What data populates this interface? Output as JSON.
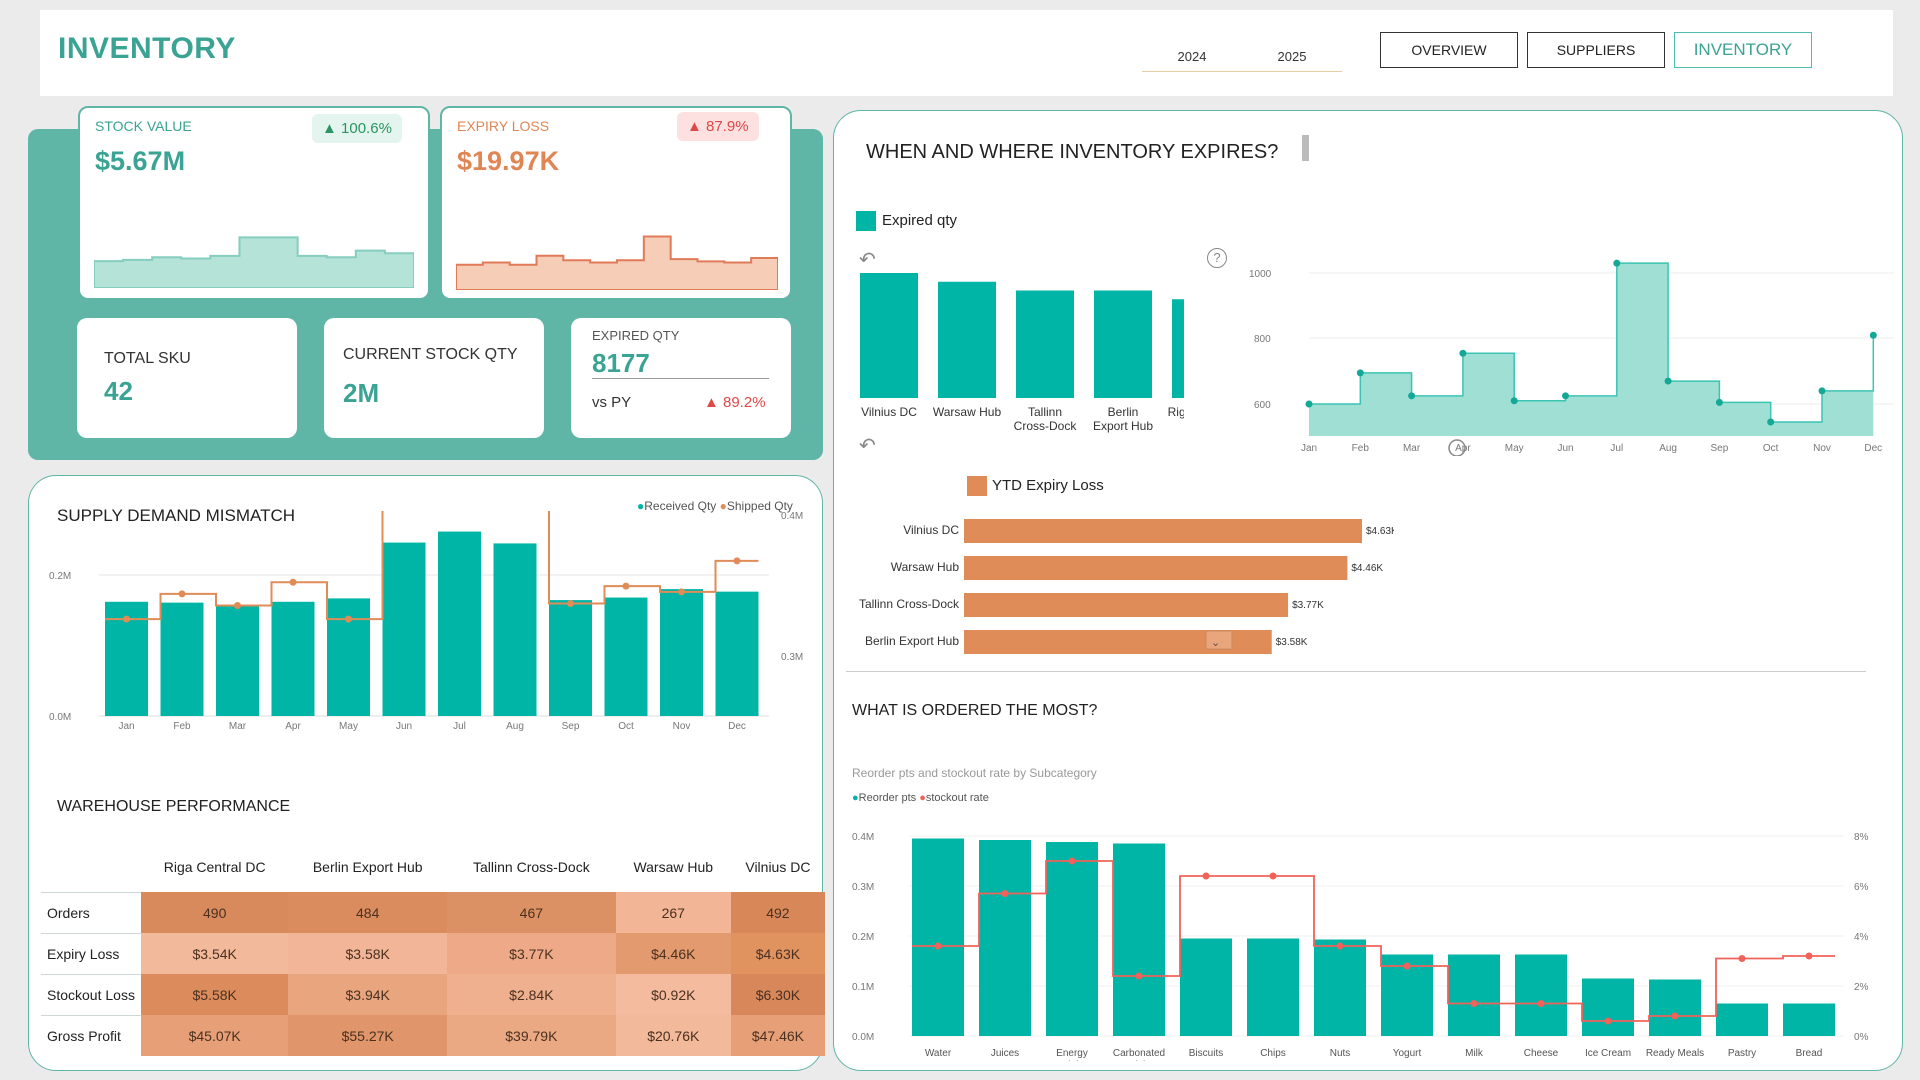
{
  "header": {
    "title": "INVENTORY",
    "years": [
      "2024",
      "2025"
    ],
    "nav": [
      "OVERVIEW",
      "SUPPLIERS",
      "INVENTORY"
    ],
    "active_nav": "INVENTORY"
  },
  "kpis": {
    "stock_value": {
      "label": "STOCK VALUE",
      "value": "$5.67M",
      "change": "100.6%",
      "trend": [
        0.32,
        0.33,
        0.35,
        0.34,
        0.36,
        0.5,
        0.5,
        0.36,
        0.35,
        0.4,
        0.38
      ]
    },
    "expiry_loss": {
      "label": "EXPIRY LOSS",
      "value": "$19.97K",
      "change": "87.9%",
      "trend": [
        0.3,
        0.32,
        0.3,
        0.38,
        0.34,
        0.32,
        0.34,
        0.55,
        0.35,
        0.33,
        0.32,
        0.36
      ]
    },
    "total_sku": {
      "label": "TOTAL SKU",
      "value": "42"
    },
    "current_stock_qty": {
      "label": "CURRENT STOCK QTY",
      "value": "2M"
    },
    "expired_qty": {
      "label": "EXPIRED QTY",
      "value": "8177",
      "vs_label": "vs PY",
      "change": "89.2%"
    }
  },
  "supply_demand": {
    "title": "SUPPLY DEMAND MISMATCH",
    "legend": [
      "Received Qty",
      "Shipped Qty"
    ],
    "y_left_ticks": [
      "0.2M",
      "0.0M"
    ],
    "y_right_ticks": [
      "0.4M",
      "0.3M"
    ]
  },
  "warehouse_performance": {
    "title": "WAREHOUSE PERFORMANCE",
    "columns": [
      "Riga Central DC",
      "Berlin Export Hub",
      "Tallinn Cross-Dock",
      "Warsaw Hub",
      "Vilnius DC"
    ],
    "rows": [
      {
        "label": "Orders",
        "values": [
          "490",
          "484",
          "467",
          "267",
          "492"
        ]
      },
      {
        "label": "Expiry Loss",
        "values": [
          "$3.54K",
          "$3.58K",
          "$3.77K",
          "$4.46K",
          "$4.63K"
        ]
      },
      {
        "label": "Stockout Loss",
        "values": [
          "$5.58K",
          "$3.94K",
          "$2.84K",
          "$0.92K",
          "$6.30K"
        ]
      },
      {
        "label": "Gross Profit",
        "values": [
          "$45.07K",
          "$55.27K",
          "$39.79K",
          "$20.76K",
          "$47.46K"
        ]
      }
    ],
    "cell_colors": [
      [
        "#d98a5c",
        "#da8c5e",
        "#dc9164",
        "#f2b596",
        "#d88858"
      ],
      [
        "#f3b99b",
        "#f2b597",
        "#eeaa88",
        "#e39a6e",
        "#e0925f"
      ],
      [
        "#dc8c5c",
        "#e9a57e",
        "#eeb08e",
        "#f4bb9f",
        "#d7875a"
      ],
      [
        "#e69f77",
        "#e0956a",
        "#eaa983",
        "#f2b99a",
        "#e79f78"
      ]
    ]
  },
  "expiry_section": {
    "title": "WHEN AND WHERE INVENTORY EXPIRES?",
    "legend_expired": "Expired qty",
    "legend_ytd": "YTD Expiry Loss"
  },
  "ordered_section": {
    "title": "WHAT IS ORDERED THE MOST?",
    "subtitle": "Reorder pts and stockout rate by Subcategory",
    "legend": [
      "Reorder pts",
      "stockout rate"
    ]
  },
  "colors": {
    "teal": "#00b5a5",
    "teal_light": "#9fdfd4",
    "orange": "#df8c58",
    "red": "#f0625a",
    "panel": "#5fb5a6"
  },
  "chart_data": [
    {
      "type": "bar+line",
      "title": "SUPPLY DEMAND MISMATCH",
      "categories": [
        "Jan",
        "Feb",
        "Mar",
        "Apr",
        "May",
        "Jun",
        "Jul",
        "Aug",
        "Sep",
        "Oct",
        "Nov",
        "Dec"
      ],
      "series": [
        {
          "name": "Received Qty",
          "values": [
            0.205,
            0.204,
            0.2,
            0.205,
            0.209,
            0.275,
            0.288,
            0.274,
            0.207,
            0.21,
            0.22,
            0.217
          ]
        },
        {
          "name": "Shipped Qty",
          "values": [
            0.05,
            0.063,
            0.057,
            0.069,
            0.05,
            0.15,
            0.16,
            0.162,
            0.058,
            0.067,
            0.064,
            0.08
          ]
        }
      ],
      "ylim": [
        0,
        0.3
      ]
    },
    {
      "type": "bar",
      "series": [
        {
          "name": "Expired qty",
          "values": [
            1000,
            930,
            860,
            860,
            790
          ]
        }
      ],
      "categories": [
        "Vilnius DC",
        "Warsaw Hub",
        "Tallinn Cross-Dock",
        "Berlin Export Hub",
        "Riga Central DC"
      ]
    },
    {
      "type": "area",
      "categories": [
        "Jan",
        "Feb",
        "Mar",
        "Apr",
        "May",
        "Jun",
        "Jul",
        "Aug",
        "Sep",
        "Oct",
        "Nov",
        "Dec"
      ],
      "series": [
        {
          "name": "Expired qty",
          "values": [
            600,
            695,
            625,
            755,
            610,
            625,
            1030,
            670,
            605,
            545,
            640,
            810
          ]
        }
      ],
      "y_ticks": [
        "1000",
        "800",
        "600"
      ],
      "ylim": [
        480,
        1050
      ]
    },
    {
      "type": "bar",
      "orientation": "horizontal",
      "series": [
        {
          "name": "YTD Expiry Loss",
          "values": [
            4.63,
            4.46,
            3.77,
            3.58
          ]
        }
      ],
      "categories": [
        "Vilnius DC",
        "Warsaw Hub",
        "Tallinn Cross-Dock",
        "Berlin Export Hub"
      ],
      "labels": [
        "$4.63K",
        "$4.46K",
        "$3.77K",
        "$3.58K"
      ]
    },
    {
      "type": "bar+line",
      "title": "Reorder pts and stockout rate by Subcategory",
      "categories": [
        "Water",
        "Juices",
        "Energy Drinks",
        "Carbonated Drinks",
        "Biscuits",
        "Chips",
        "Nuts",
        "Yogurt",
        "Milk",
        "Cheese",
        "Ice Cream",
        "Ready Meals",
        "Pastry",
        "Bread"
      ],
      "series": [
        {
          "name": "Reorder pts",
          "values": [
            0.395,
            0.392,
            0.388,
            0.385,
            0.195,
            0.195,
            0.193,
            0.163,
            0.163,
            0.163,
            0.115,
            0.113,
            0.065,
            0.065
          ]
        },
        {
          "name": "stockout rate",
          "values": [
            3.6,
            5.7,
            7.0,
            2.4,
            6.4,
            6.4,
            3.6,
            2.8,
            1.3,
            1.3,
            0.6,
            0.8,
            3.1,
            3.2
          ]
        }
      ],
      "y_left_ticks": [
        "0.4M",
        "0.3M",
        "0.2M",
        "0.1M",
        "0.0M"
      ],
      "y_right_ticks": [
        "8%",
        "6%",
        "4%",
        "2%",
        "0%"
      ],
      "ylim": [
        0,
        0.4
      ],
      "y2lim": [
        0,
        8
      ]
    }
  ]
}
